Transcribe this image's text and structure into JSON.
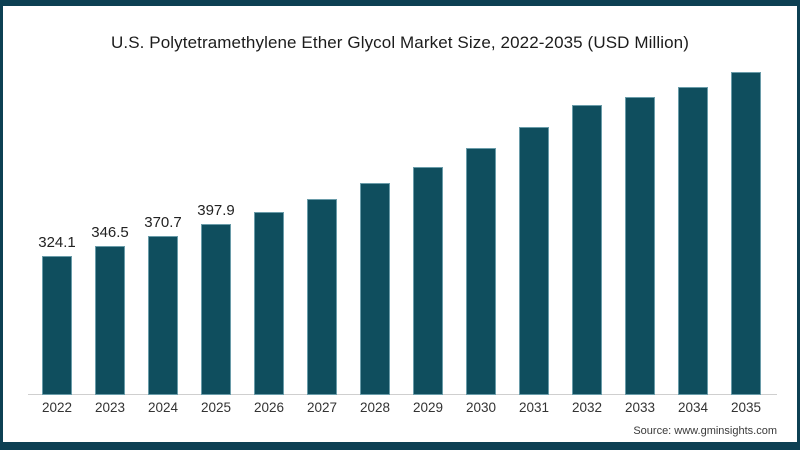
{
  "frame": {
    "border_color": "#0d4053",
    "background": "#ffffff"
  },
  "title": "U.S. Polytetramethylene Ether Glycol Market Size, 2022-2035 (USD Million)",
  "source": "Source: www.gminsights.com",
  "chart_data": {
    "type": "bar",
    "title": "U.S. Polytetramethylene Ether Glycol Market Size, 2022-2035 (USD Million)",
    "categories": [
      "2022",
      "2023",
      "2024",
      "2025",
      "2026",
      "2027",
      "2028",
      "2029",
      "2030",
      "2031",
      "2032",
      "2033",
      "2034",
      "2035"
    ],
    "values": [
      324.1,
      346.5,
      370.7,
      397.9,
      427,
      456,
      494,
      532,
      576,
      625,
      675,
      694,
      717,
      752
    ],
    "data_labels": [
      "324.1",
      "346.5",
      "370.7",
      "397.9",
      "",
      "",
      "",
      "",
      "",
      "",
      "",
      "",
      "",
      ""
    ],
    "xlabel": "",
    "ylabel": "",
    "ylim": [
      0,
      790
    ],
    "grid": false,
    "legend_position": "none",
    "bar_color": "#0f4e5e",
    "bar_stroke": "#b7dce8",
    "axis_line_color": "#cfcfcf"
  },
  "layout_note": "values for 2026-2035 estimated from bar heights; labels shown only for 2022-2025"
}
